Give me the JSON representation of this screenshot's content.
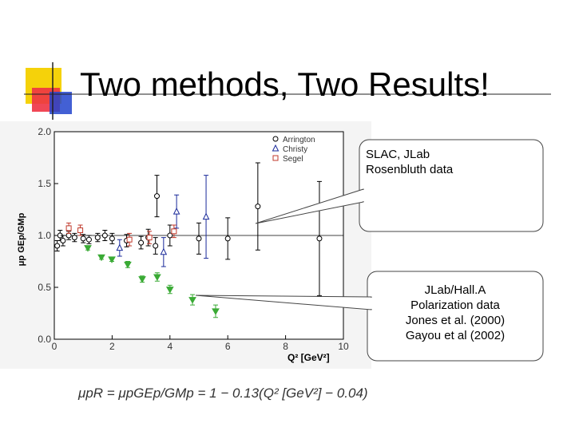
{
  "title": "Two methods, Two Results!",
  "chart_data": {
    "type": "scatter",
    "xlabel": "Q² [GeV²]",
    "ylabel": "μp GEp/GMp",
    "xlim": [
      0,
      10
    ],
    "ylim": [
      0,
      2
    ],
    "xticks": [
      0,
      2,
      4,
      6,
      8,
      10
    ],
    "yticks": [
      {
        "value": 0,
        "label": "0.0"
      },
      {
        "value": 0.5,
        "label": "0.5"
      },
      {
        "value": 1,
        "label": "1.0"
      },
      {
        "value": 1.5,
        "label": "1.5"
      },
      {
        "value": 2,
        "label": "2.0"
      }
    ],
    "legend": "top-right",
    "series": [
      {
        "name": "Arrington",
        "color": "#000000",
        "marker": "circle",
        "x": [
          0.1,
          0.2,
          0.3,
          0.5,
          0.7,
          1.0,
          1.2,
          1.5,
          1.75,
          2.0,
          2.5,
          3.0,
          3.25,
          3.5,
          3.55,
          4.0,
          5.0,
          6.0,
          7.04,
          9.17
        ],
        "values": [
          0.9,
          1.0,
          0.95,
          1.0,
          0.98,
          0.97,
          0.96,
          0.98,
          1.0,
          0.97,
          0.95,
          0.93,
          0.98,
          0.9,
          1.38,
          1.0,
          0.97,
          0.97,
          1.28,
          0.97
        ],
        "errors": [
          0.05,
          0.05,
          0.05,
          0.04,
          0.04,
          0.04,
          0.04,
          0.04,
          0.05,
          0.05,
          0.06,
          0.06,
          0.08,
          0.08,
          0.2,
          0.1,
          0.15,
          0.2,
          0.42,
          0.55
        ]
      },
      {
        "name": "Christy",
        "color": "#1a2a9a",
        "marker": "triangle",
        "x": [
          2.26,
          3.78,
          4.23,
          5.25
        ],
        "values": [
          0.88,
          0.84,
          1.23,
          1.18
        ],
        "errors": [
          0.08,
          0.14,
          0.16,
          0.4
        ]
      },
      {
        "name": "Segel",
        "color": "#c0392b",
        "marker": "square",
        "x": [
          0.5,
          0.9,
          2.6,
          3.29,
          4.14
        ],
        "values": [
          1.07,
          1.05,
          0.96,
          0.98,
          1.04
        ],
        "errors": [
          0.05,
          0.05,
          0.06,
          0.06,
          0.06
        ]
      },
      {
        "color": "#3aaa35",
        "marker": "triangle-down",
        "x": [
          1.16,
          1.63,
          1.99,
          2.54,
          3.04,
          3.56,
          4.0,
          4.78,
          5.58
        ],
        "values": [
          0.88,
          0.79,
          0.77,
          0.72,
          0.58,
          0.6,
          0.48,
          0.38,
          0.27
        ],
        "errors": [
          0.02,
          0.02,
          0.02,
          0.03,
          0.03,
          0.04,
          0.04,
          0.05,
          0.06
        ]
      }
    ]
  },
  "callouts": [
    {
      "lines": [
        "SLAC, JLab",
        "Rosenbluth data"
      ]
    },
    {
      "lines": [
        "JLab/Hall.A",
        "Polarization data",
        "Jones et al. (2000)",
        "Gayou et al (2002)"
      ]
    }
  ],
  "formula": "μpR = μpGEp/GMp = 1 − 0.13(Q² [GeV²] − 0.04)"
}
